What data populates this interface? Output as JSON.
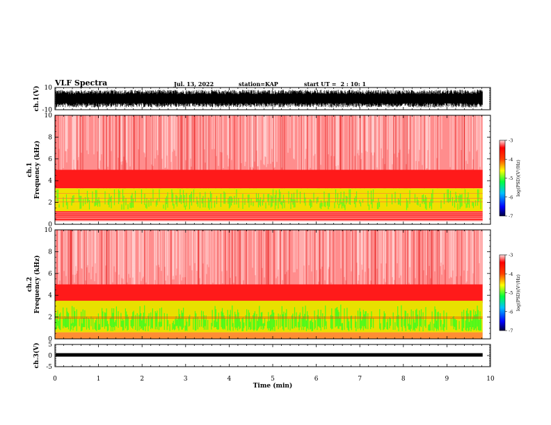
{
  "header": {
    "title": "VLF Spectra",
    "date": "Jul. 13, 2022",
    "station": "station=KAP",
    "start_label": "start UT =",
    "start_time": "2 : 10: 1"
  },
  "colors": {
    "spectrum_high": "#ff0000",
    "spectrum_mid": "#ffff00",
    "spectrum_low": "#00ff00",
    "colorbar": [
      "#000080",
      "#0000ff",
      "#00bfff",
      "#00ff00",
      "#ffff00",
      "#ff8000",
      "#ff0000",
      "#ffffff"
    ]
  },
  "chart_data": [
    {
      "type": "line",
      "panel": "waveform-ch1",
      "ylabel": "ch.1(V)",
      "ylim": [
        -10,
        10
      ],
      "y_ticks": [
        "10",
        "-10"
      ],
      "note_series": "dense oscillating voltage trace filling most of the range",
      "amplitude_range": [
        -8,
        8
      ],
      "xlim": [
        0,
        10
      ]
    },
    {
      "type": "heatmap",
      "panel": "spectrogram-ch1",
      "ylabel": "ch.1\nFrequency (kHz)",
      "ylim": [
        0,
        10
      ],
      "y_ticks": [
        "0",
        "2",
        "4",
        "6",
        "8",
        "10"
      ],
      "xlim": [
        0,
        10
      ],
      "data_end_min": 9.82,
      "bands": [
        {
          "from_khz": 0.0,
          "to_khz": 0.3,
          "color": "white"
        },
        {
          "from_khz": 0.3,
          "to_khz": 1.2,
          "color": "red"
        },
        {
          "from_khz": 1.2,
          "to_khz": 3.3,
          "color": "yellow-green"
        },
        {
          "from_khz": 3.3,
          "to_khz": 5.0,
          "color": "red"
        },
        {
          "from_khz": 5.0,
          "to_khz": 10.0,
          "color": "red-white"
        }
      ],
      "colorbar": {
        "label": "log(PSD)(V²/Hz)",
        "ticks": [
          "-3",
          "-4",
          "-5",
          "-6",
          "-7"
        ],
        "range": [
          -7,
          -3
        ]
      }
    },
    {
      "type": "heatmap",
      "panel": "spectrogram-ch2",
      "ylabel": "ch.2\nFrequency (kHz)",
      "ylim": [
        0,
        10
      ],
      "y_ticks": [
        "0",
        "2",
        "4",
        "6",
        "8",
        "10"
      ],
      "xlim": [
        0,
        10
      ],
      "data_end_min": 9.82,
      "bands": [
        {
          "from_khz": 0.0,
          "to_khz": 0.6,
          "color": "red-yellow"
        },
        {
          "from_khz": 0.6,
          "to_khz": 2.0,
          "color": "green-yellow"
        },
        {
          "from_khz": 2.0,
          "to_khz": 3.5,
          "color": "yellow"
        },
        {
          "from_khz": 3.5,
          "to_khz": 5.0,
          "color": "red"
        },
        {
          "from_khz": 5.0,
          "to_khz": 10.0,
          "color": "red-white"
        }
      ],
      "colorbar": {
        "label": "log(PSD)(V²/Hz)",
        "ticks": [
          "-3",
          "-4",
          "-5",
          "-6",
          "-7"
        ],
        "range": [
          -7,
          -3
        ]
      }
    },
    {
      "type": "line",
      "panel": "waveform-ch3",
      "ylabel": "ch.3(V)",
      "ylim": [
        -5,
        5
      ],
      "y_ticks": [
        "5",
        "0",
        "-5"
      ],
      "level_value": 0.3,
      "xlim": [
        0,
        10
      ],
      "xlabel": "Time (min)",
      "x_ticks": [
        "0",
        "1",
        "2",
        "3",
        "4",
        "5",
        "6",
        "7",
        "8",
        "9",
        "10"
      ]
    }
  ]
}
